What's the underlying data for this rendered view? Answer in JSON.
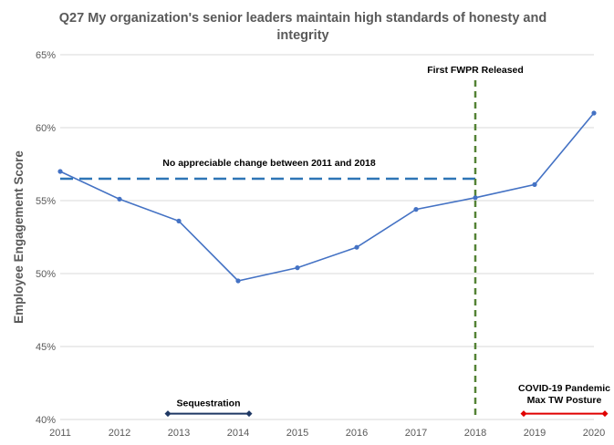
{
  "chart_data": {
    "type": "line",
    "title": [
      "Q27 My organization's  senior leaders  maintain  high standards  of honesty  and",
      "integrity"
    ],
    "ylabel": "Employee Engagement Score",
    "xlabel": "",
    "x": [
      2011,
      2012,
      2013,
      2014,
      2015,
      2016,
      2017,
      2018,
      2019,
      2020
    ],
    "xlim": [
      2011,
      2020
    ],
    "ylim": [
      40,
      65
    ],
    "yticks": [
      40,
      45,
      50,
      55,
      60,
      65
    ],
    "ytick_labels": [
      "40%",
      "45%",
      "50%",
      "55%",
      "60%",
      "65%"
    ],
    "xtick_labels": [
      "2011",
      "2012",
      "2013",
      "2014",
      "2015",
      "2016",
      "2017",
      "2018",
      "2019",
      "2020"
    ],
    "grid": "horizontal",
    "series": [
      {
        "values": [
          57.0,
          55.1,
          53.6,
          49.5,
          50.4,
          51.8,
          54.4,
          55.2,
          56.1,
          61.0
        ],
        "color": "#4472C4"
      }
    ],
    "annotations": {
      "baseline": {
        "label": "No appreciable change between 2011 and 2018",
        "y": 56.5,
        "x_start": 2011,
        "x_end": 2018,
        "color": "#2E75B6"
      },
      "fwpr": {
        "label": "First FWPR Released",
        "x": 2018,
        "color": "#548235"
      },
      "sequestration": {
        "label": "Sequestration",
        "x_start": 2013,
        "x_end": 2014,
        "y": 40.4,
        "color": "#1F3864"
      },
      "covid": {
        "label_line1": "COVID-19 Pandemic",
        "label_line2": "Max TW Posture",
        "x_start": 2019,
        "x_end": 2020,
        "y": 40.4,
        "color": "#E00000"
      }
    },
    "colors": {
      "gridline": "#D9D9D9",
      "text": "#595959"
    }
  }
}
